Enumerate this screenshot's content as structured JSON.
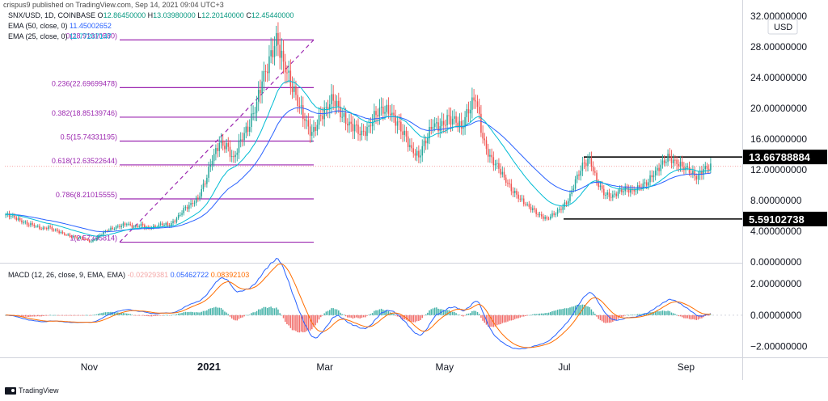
{
  "header": {
    "attribution": "crispus9 published on TradingView.com, Sep 14, 2021 09:04 UTC+3",
    "symbol_line": "SNX/USD, 1D, COINBASE",
    "ohlc": {
      "o_label": "O",
      "o": "12.86450000",
      "h_label": "H",
      "h": "13.03980000",
      "l_label": "L",
      "l": "12.20140000",
      "c_label": "C",
      "c": "12.45440000"
    },
    "ema50_label": "EMA (50, close, 0)",
    "ema50_value": "11.45002652",
    "ema25_label": "EMA (25, close, 0)",
    "ema25_value": "11.77207147",
    "macd_label": "MACD (12, 26, close, 9, EMA, EMA)",
    "macd_hist": "-0.02929381",
    "macd_line": "0.05462722",
    "macd_signal": "0.08392103"
  },
  "footer": {
    "brand": "TradingView"
  },
  "colors": {
    "up": "#26a69a",
    "down": "#ef5350",
    "ema50": "#2962ff",
    "ema25": "#00bcd4",
    "fib": "#9c27b0",
    "macd": "#2962ff",
    "signal": "#ff6d00",
    "level": "#000000"
  },
  "chart_data": [
    {
      "type": "candlestick",
      "title": "SNX/USD, 1D, COINBASE",
      "currency": "USD",
      "ylim": [
        0,
        32
      ],
      "y_ticks": [
        "32.00000000",
        "28.00000000",
        "24.00000000",
        "20.00000000",
        "16.00000000",
        "12.00000000",
        "8.00000000",
        "4.00000000",
        "0.00000000"
      ],
      "x_ticks": [
        "Nov",
        "2021",
        "Mar",
        "May",
        "Jul",
        "Sep"
      ],
      "last_price_line": 12.45,
      "fibonacci": [
        {
          "label": "0(28.91310580)",
          "value": 28.91
        },
        {
          "label": "0.236(22.69699478)",
          "value": 22.7
        },
        {
          "label": "0.382(18.85139746)",
          "value": 18.85
        },
        {
          "label": "0.5(15.74331195)",
          "value": 15.74
        },
        {
          "label": "0.618(12.63522644)",
          "value": 12.64
        },
        {
          "label": "0.786(8.21015555)",
          "value": 8.21
        },
        {
          "label": "1(2.57345814)",
          "value": 2.57
        }
      ],
      "horizontal_levels": [
        {
          "label": "13.66788884",
          "value": 13.668
        },
        {
          "label": "5.59102738",
          "value": 5.591
        }
      ],
      "price_path": [
        6.2,
        5.9,
        5.4,
        5.0,
        4.8,
        4.3,
        4.5,
        4.1,
        3.7,
        3.4,
        3.2,
        3.0,
        2.6,
        3.3,
        4.0,
        4.4,
        4.7,
        5.0,
        4.5,
        4.8,
        4.4,
        4.6,
        5.0,
        4.8,
        5.6,
        6.8,
        7.5,
        8.3,
        10.5,
        13.5,
        15.4,
        15.0,
        13.3,
        16.0,
        17.5,
        20.0,
        23.5,
        26.0,
        28.9,
        26.0,
        23.5,
        21.0,
        18.5,
        16.5,
        18.5,
        20.0,
        21.5,
        19.5,
        18.0,
        17.5,
        16.5,
        17.5,
        19.5,
        20.0,
        19.5,
        18.0,
        16.5,
        14.5,
        13.8,
        16.0,
        18.0,
        17.5,
        18.5,
        18.5,
        17.5,
        20.0,
        21.5,
        16.0,
        13.5,
        12.5,
        11.0,
        9.5,
        8.5,
        7.5,
        6.8,
        6.0,
        5.6,
        6.3,
        7.0,
        8.0,
        10.5,
        12.5,
        13.4,
        10.5,
        9.0,
        8.5,
        9.0,
        9.5,
        9.2,
        9.8,
        10.3,
        11.5,
        12.5,
        13.6,
        13.0,
        12.5,
        12.0,
        11.0,
        12.0,
        12.4
      ]
    },
    {
      "type": "macd",
      "title": "MACD (12, 26, close, 9, EMA, EMA)",
      "ylim": [
        -2.6,
        3.1
      ],
      "y_ticks": [
        "2.00000000",
        "0.00000000",
        "−2.00000000"
      ]
    }
  ]
}
